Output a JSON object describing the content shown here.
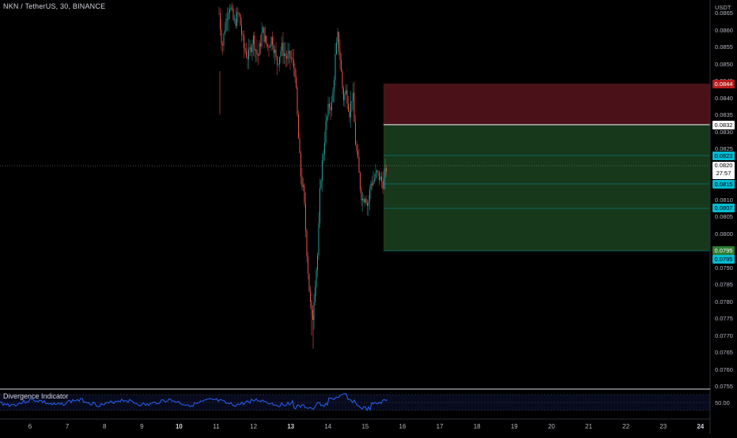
{
  "symbol": {
    "title": "NKN / TetherUS, 30, BINANCE"
  },
  "price_scale": {
    "currency": "USDT",
    "tick_labels": [
      "0.0865",
      "0.0860",
      "0.0855",
      "0.0850",
      "0.0845",
      "0.0840",
      "0.0835",
      "0.0830",
      "0.0825",
      "0.0820",
      "0.0815",
      "0.0810",
      "0.0805",
      "0.0800",
      "0.0795",
      "0.0790",
      "0.0785",
      "0.0780",
      "0.0775",
      "0.0770",
      "0.0765",
      "0.0760",
      "0.0755"
    ],
    "tick_values": [
      0.0865,
      0.086,
      0.0855,
      0.085,
      0.0845,
      0.084,
      0.0835,
      0.083,
      0.0825,
      0.082,
      0.0815,
      0.081,
      0.0805,
      0.08,
      0.0795,
      0.079,
      0.0785,
      0.078,
      0.0775,
      0.077,
      0.0765,
      0.076,
      0.0755
    ]
  },
  "time_axis": {
    "labels": [
      "6",
      "7",
      "8",
      "9",
      "10",
      "11",
      "12",
      "13",
      "14",
      "15",
      "16",
      "17",
      "18",
      "19",
      "20",
      "21",
      "22",
      "23",
      "24"
    ],
    "bold": [
      "10",
      "13",
      "24"
    ]
  },
  "position": {
    "stop_price": "0.0844",
    "entry_price": "0.0832",
    "target1": "0.0823",
    "current_price": "0.0820",
    "countdown": "27:57",
    "target2": "0.0815",
    "target3": "0.0807",
    "target4": "0.0795",
    "target4_alt": "0.0795"
  },
  "indicator": {
    "name": "Divergence Indicator",
    "level_label": "50.00"
  },
  "colors": {
    "up": "#26a69a",
    "down": "#ef5350",
    "stop_zone": "#4a1119",
    "profit_zone": "#17381b",
    "rsi_line": "#2962ff",
    "target_line": "#00bcd4"
  }
}
